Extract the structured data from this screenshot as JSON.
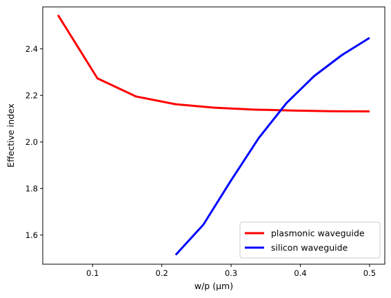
{
  "chart_data": {
    "type": "line",
    "title": "",
    "xlabel": "w/p (μm)",
    "ylabel": "Effective index",
    "xlim": [
      0.028,
      0.522
    ],
    "ylim": [
      1.475,
      2.58
    ],
    "xticks": [
      0.1,
      0.2,
      0.3,
      0.4,
      0.5
    ],
    "xtick_labels": [
      "0.1",
      "0.2",
      "0.3",
      "0.4",
      "0.5"
    ],
    "yticks": [
      1.6,
      1.8,
      2.0,
      2.2,
      2.4
    ],
    "ytick_labels": [
      "1.6",
      "1.8",
      "2.0",
      "2.2",
      "2.4"
    ],
    "grid": false,
    "legend_position": "bottom-right",
    "series": [
      {
        "name": "plasmonic waveguide",
        "color": "#ff0000",
        "x": [
          0.05,
          0.107,
          0.163,
          0.22,
          0.276,
          0.333,
          0.389,
          0.445,
          0.5
        ],
        "y": [
          2.545,
          2.273,
          2.195,
          2.162,
          2.147,
          2.139,
          2.135,
          2.132,
          2.131
        ]
      },
      {
        "name": "silicon waveguide",
        "color": "#0000ff",
        "x": [
          0.22,
          0.26,
          0.3,
          0.34,
          0.38,
          0.42,
          0.46,
          0.5
        ],
        "y": [
          1.515,
          1.645,
          1.835,
          2.017,
          2.167,
          2.283,
          2.373,
          2.447
        ]
      }
    ]
  }
}
